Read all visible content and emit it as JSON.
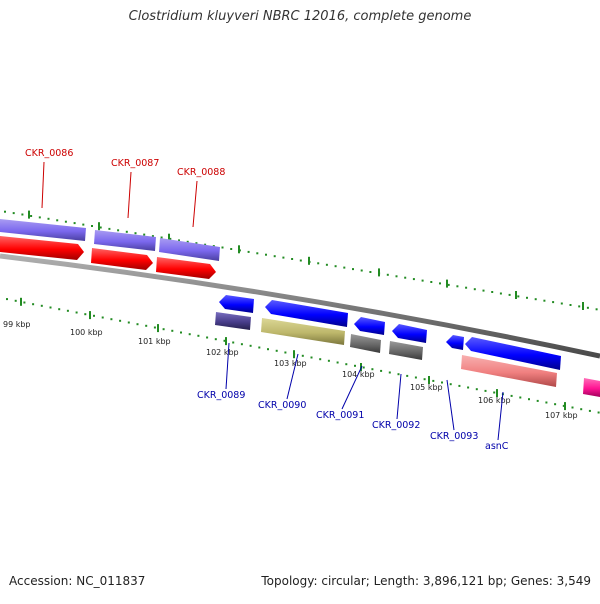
{
  "title": "Clostridium kluyveri NBRC 12016, complete genome",
  "accession": "Accession: NC_011837",
  "topology": "Topology: circular; Length: 3,896,121 bp; Genes: 3,549",
  "colors": {
    "backbone": "#808080",
    "tick": "#228b22",
    "forward_gene_label": "#cc0000",
    "reverse_gene_label": "#0000aa",
    "lavender": "#7b68ee",
    "red": "#ff0000",
    "blue": "#0000ff",
    "dark_slate": "#483d8b",
    "khaki": "#bdb76b",
    "gray": "#696969",
    "salmon": "#f08080",
    "magenta": "#ff1493"
  },
  "kbp_labels": [
    "99 kbp",
    "100 kbp",
    "101 kbp",
    "102 kbp",
    "103 kbp",
    "104 kbp",
    "105 kbp",
    "106 kbp",
    "107 kbp"
  ],
  "forward_labels": [
    "CKR_0086",
    "CKR_0087",
    "CKR_0088"
  ],
  "reverse_labels": [
    "CKR_0089",
    "CKR_0090",
    "CKR_0091",
    "CKR_0092",
    "CKR_0093",
    "asnC"
  ]
}
